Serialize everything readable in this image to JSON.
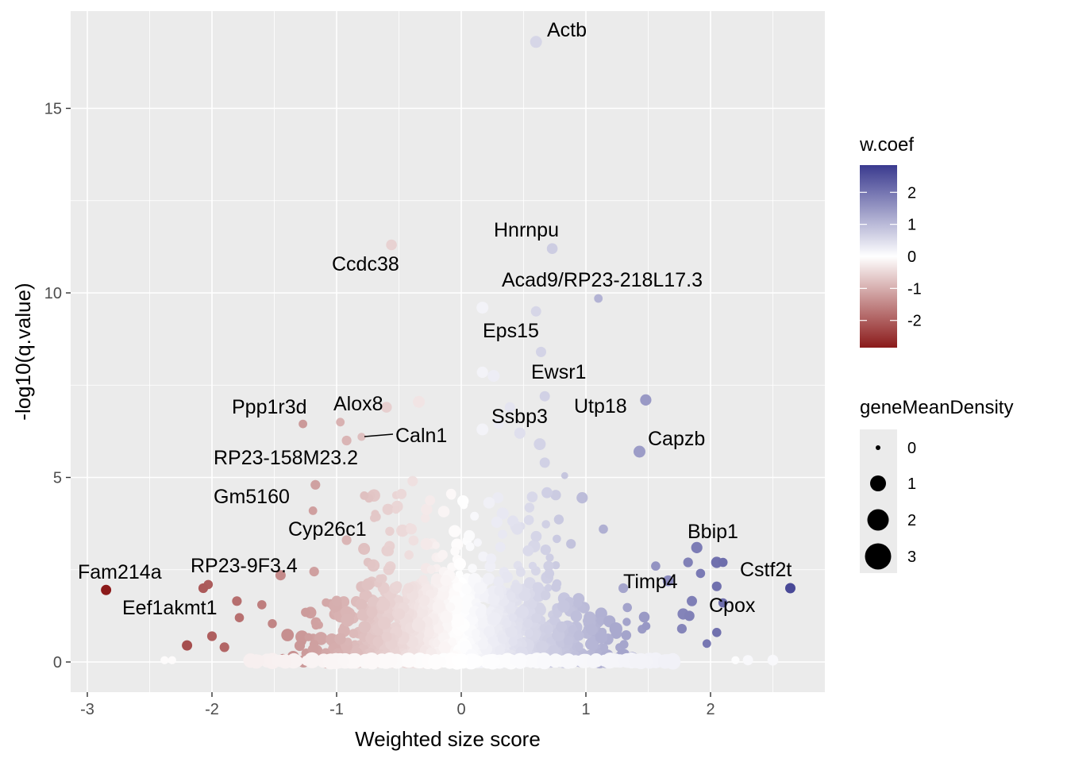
{
  "chart_data": {
    "type": "scatter",
    "title": "",
    "xlabel": "Weighted size score",
    "ylabel": "-log10(q.value)",
    "xlim": [
      -3.15,
      2.92
    ],
    "ylim": [
      -0.85,
      17.6
    ],
    "x_ticks": [
      "-3",
      "-2",
      "-1",
      "0",
      "1",
      "2"
    ],
    "x_tick_values": [
      -3,
      -2,
      -1,
      0,
      1,
      2
    ],
    "y_ticks": [
      "0",
      "5",
      "10",
      "15"
    ],
    "y_tick_values": [
      0,
      5,
      10,
      15
    ],
    "grid": true,
    "color_scale": {
      "variable": "w.coef",
      "low": "#8B1A1A",
      "mid": "#FFFFFF",
      "high": "#3A3A8F",
      "limits": [
        -2.85,
        2.85
      ],
      "breaks": [
        "2",
        "1",
        "0",
        "-1",
        "-2"
      ],
      "break_values": [
        2,
        1,
        0,
        -1,
        -2
      ]
    },
    "size_scale": {
      "variable": "geneMeanDensity",
      "breaks": [
        "0",
        "1",
        "2",
        "3"
      ],
      "break_values": [
        0,
        1,
        2,
        3
      ]
    },
    "legend_position": "right",
    "labeled_points": [
      {
        "gene": "Actb",
        "x": 0.6,
        "y": 16.8
      },
      {
        "gene": "Hnrnpu",
        "x": 0.73,
        "y": 11.2
      },
      {
        "gene": "Ccdc38",
        "x": -0.56,
        "y": 11.3
      },
      {
        "gene": "Acad9/RP23-218L17.3",
        "x": 1.1,
        "y": 9.85
      },
      {
        "gene": "Eps15",
        "x": 0.64,
        "y": 8.4
      },
      {
        "gene": "Ewsr1",
        "x": 0.67,
        "y": 7.2
      },
      {
        "gene": "Utp18",
        "x": 1.48,
        "y": 7.1
      },
      {
        "gene": "Alox8",
        "x": -0.6,
        "y": 6.9
      },
      {
        "gene": "Ppp1r3d",
        "x": -1.27,
        "y": 6.45
      },
      {
        "gene": "Ssbp3",
        "x": 0.47,
        "y": 6.2
      },
      {
        "gene": "Caln1",
        "x": -0.8,
        "y": 6.1
      },
      {
        "gene": "Capzb",
        "x": 1.43,
        "y": 5.7
      },
      {
        "gene": "RP23-158M23.2",
        "x": -1.17,
        "y": 4.8
      },
      {
        "gene": "Gm5160",
        "x": -1.19,
        "y": 4.1
      },
      {
        "gene": "Cyp26c1",
        "x": -0.92,
        "y": 3.3
      },
      {
        "gene": "Bbip1",
        "x": 1.89,
        "y": 3.1
      },
      {
        "gene": "RP23-9F3.4",
        "x": -1.18,
        "y": 2.45
      },
      {
        "gene": "Fam214a",
        "x": -2.85,
        "y": 1.95
      },
      {
        "gene": "Cstf2t",
        "x": 2.64,
        "y": 2.0
      },
      {
        "gene": "Timp4",
        "x": 1.4,
        "y": 2.6
      },
      {
        "gene": "Eef1akmt1",
        "x": -2.03,
        "y": 2.1
      },
      {
        "gene": "Cpox",
        "x": 2.1,
        "y": 1.6
      }
    ],
    "points": [
      {
        "x": 0.6,
        "y": 16.8,
        "c": 0.6,
        "s": 1.2
      },
      {
        "x": 0.73,
        "y": 11.2,
        "c": 0.73,
        "s": 1.0
      },
      {
        "x": -0.56,
        "y": 11.3,
        "c": -0.56,
        "s": 1.0
      },
      {
        "x": 1.1,
        "y": 9.85,
        "c": 1.1,
        "s": 0.6
      },
      {
        "x": 0.17,
        "y": 9.6,
        "c": 0.17,
        "s": 1.2
      },
      {
        "x": 0.6,
        "y": 9.5,
        "c": 0.6,
        "s": 0.9
      },
      {
        "x": 0.64,
        "y": 8.4,
        "c": 0.64,
        "s": 0.9
      },
      {
        "x": 0.17,
        "y": 7.85,
        "c": 0.17,
        "s": 1.1
      },
      {
        "x": 0.26,
        "y": 7.75,
        "c": 0.26,
        "s": 1.2
      },
      {
        "x": 0.67,
        "y": 7.2,
        "c": 0.67,
        "s": 0.9
      },
      {
        "x": 1.48,
        "y": 7.1,
        "c": 1.48,
        "s": 1.1
      },
      {
        "x": -0.34,
        "y": 7.05,
        "c": -0.34,
        "s": 1.2
      },
      {
        "x": -0.6,
        "y": 6.9,
        "c": -0.6,
        "s": 1.0
      },
      {
        "x": 0.39,
        "y": 6.9,
        "c": 0.39,
        "s": 0.9
      },
      {
        "x": -0.97,
        "y": 6.5,
        "c": -0.97,
        "s": 0.6
      },
      {
        "x": -1.27,
        "y": 6.45,
        "c": -1.27,
        "s": 0.6
      },
      {
        "x": 0.3,
        "y": 6.45,
        "c": 0.3,
        "s": 0.9
      },
      {
        "x": 0.17,
        "y": 6.3,
        "c": 0.17,
        "s": 1.2
      },
      {
        "x": 0.47,
        "y": 6.2,
        "c": 0.47,
        "s": 1.1
      },
      {
        "x": -0.92,
        "y": 6.0,
        "c": -0.92,
        "s": 0.8
      },
      {
        "x": -0.8,
        "y": 6.1,
        "c": -0.8,
        "s": 0.5
      },
      {
        "x": 0.63,
        "y": 5.9,
        "c": 0.63,
        "s": 1.2
      },
      {
        "x": 1.43,
        "y": 5.7,
        "c": 1.43,
        "s": 1.2
      },
      {
        "x": 0.67,
        "y": 5.4,
        "c": 0.67,
        "s": 0.9
      },
      {
        "x": 0.83,
        "y": 5.05,
        "c": 0.83,
        "s": 0.3
      },
      {
        "x": -0.39,
        "y": 4.9,
        "c": -0.39,
        "s": 0.9
      },
      {
        "x": -1.17,
        "y": 4.8,
        "c": -1.17,
        "s": 0.8
      },
      {
        "x": -0.48,
        "y": 4.55,
        "c": -0.48,
        "s": 0.9
      },
      {
        "x": 0.97,
        "y": 4.45,
        "c": 0.97,
        "s": 1.1
      },
      {
        "x": 0.02,
        "y": 4.25,
        "c": 0.02,
        "s": 0.5
      },
      {
        "x": -1.19,
        "y": 4.1,
        "c": -1.19,
        "s": 0.6
      },
      {
        "x": -0.92,
        "y": 3.3,
        "c": -0.92,
        "s": 0.8
      },
      {
        "x": 1.89,
        "y": 3.1,
        "c": 1.89,
        "s": 1.1
      },
      {
        "x": 2.05,
        "y": 2.7,
        "c": 2.05,
        "s": 1.1
      },
      {
        "x": 2.1,
        "y": 2.7,
        "c": 2.1,
        "s": 0.7
      },
      {
        "x": 1.82,
        "y": 2.7,
        "c": 1.82,
        "s": 0.8
      },
      {
        "x": 1.56,
        "y": 2.6,
        "c": 1.56,
        "s": 0.7
      },
      {
        "x": 1.92,
        "y": 2.4,
        "c": 1.92,
        "s": 0.7
      },
      {
        "x": -1.18,
        "y": 2.45,
        "c": -1.18,
        "s": 0.8
      },
      {
        "x": 1.66,
        "y": 2.2,
        "c": 1.66,
        "s": 1.0
      },
      {
        "x": 2.64,
        "y": 2.0,
        "c": 2.64,
        "s": 0.9
      },
      {
        "x": -2.85,
        "y": 1.95,
        "c": -2.85,
        "s": 0.9
      },
      {
        "x": -2.03,
        "y": 2.1,
        "c": -2.03,
        "s": 0.7
      },
      {
        "x": -2.07,
        "y": 2.0,
        "c": -2.07,
        "s": 0.8
      },
      {
        "x": 2.05,
        "y": 2.05,
        "c": 2.05,
        "s": 0.8
      },
      {
        "x": 1.3,
        "y": 2.0,
        "c": 1.3,
        "s": 0.8
      },
      {
        "x": 1.85,
        "y": 1.65,
        "c": 1.85,
        "s": 0.9
      },
      {
        "x": 2.1,
        "y": 1.6,
        "c": 2.1,
        "s": 0.7
      },
      {
        "x": 1.78,
        "y": 1.3,
        "c": 1.78,
        "s": 1.1
      },
      {
        "x": 1.83,
        "y": 1.25,
        "c": 1.83,
        "s": 0.9
      },
      {
        "x": -1.8,
        "y": 1.65,
        "c": -1.8,
        "s": 0.8
      },
      {
        "x": -1.6,
        "y": 1.55,
        "c": -1.6,
        "s": 0.7
      },
      {
        "x": -1.45,
        "y": 2.35,
        "c": -1.45,
        "s": 0.9
      },
      {
        "x": -2.2,
        "y": 0.45,
        "c": -2.2,
        "s": 0.9
      },
      {
        "x": -2.0,
        "y": 0.7,
        "c": -2.0,
        "s": 0.8
      },
      {
        "x": -1.9,
        "y": 0.4,
        "c": -1.9,
        "s": 0.8
      },
      {
        "x": -1.78,
        "y": 1.2,
        "c": -1.78,
        "s": 0.7
      },
      {
        "x": 1.77,
        "y": 0.9,
        "c": 1.77,
        "s": 0.8
      },
      {
        "x": 2.05,
        "y": 0.8,
        "c": 2.05,
        "s": 0.7
      },
      {
        "x": 1.97,
        "y": 0.5,
        "c": 1.97,
        "s": 0.6
      },
      {
        "x": 2.5,
        "y": 0.05,
        "c": 0.1,
        "s": 1.0
      },
      {
        "x": 2.3,
        "y": 0.05,
        "c": 0.1,
        "s": 0.9
      },
      {
        "x": 2.2,
        "y": 0.05,
        "c": 0.05,
        "s": 0.5
      },
      {
        "x": -2.38,
        "y": 0.05,
        "c": -0.05,
        "s": 0.5
      },
      {
        "x": -2.32,
        "y": 0.05,
        "c": -0.05,
        "s": 0.5
      },
      {
        "x": -0.58,
        "y": 3.0,
        "c": -0.58,
        "s": 0.8
      },
      {
        "x": -0.7,
        "y": 3.9,
        "c": -0.7,
        "s": 0.5
      },
      {
        "x": 0.45,
        "y": 3.6,
        "c": 0.45,
        "s": 1.1
      },
      {
        "x": 0.88,
        "y": 3.2,
        "c": 0.88,
        "s": 0.8
      },
      {
        "x": 1.14,
        "y": 3.6,
        "c": 1.14,
        "s": 0.7
      },
      {
        "x": -0.4,
        "y": 3.6,
        "c": -0.4,
        "s": 1.0
      },
      {
        "x": -0.27,
        "y": 3.2,
        "c": -0.27,
        "s": 0.8
      },
      {
        "x": -0.42,
        "y": 2.9,
        "c": -0.42,
        "s": 0.7
      },
      {
        "x": -0.05,
        "y": 3.0,
        "c": -0.05,
        "s": 0.7
      },
      {
        "x": 0.7,
        "y": 2.6,
        "c": 0.7,
        "s": 0.9
      },
      {
        "x": 0.24,
        "y": 2.8,
        "c": 0.24,
        "s": 0.9
      }
    ]
  }
}
